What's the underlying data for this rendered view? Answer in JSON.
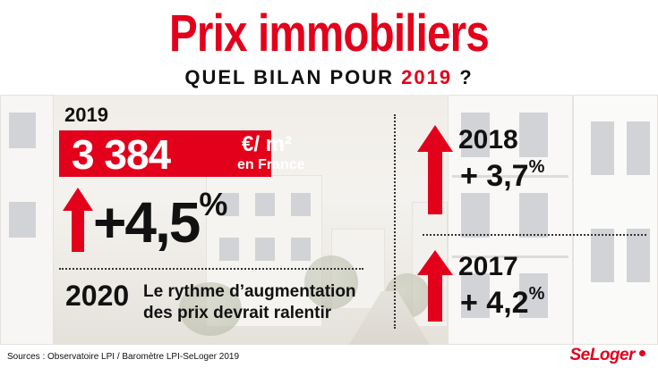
{
  "header": {
    "title": "Prix immobiliers",
    "subtitle_prefix": "QUEL BILAN POUR ",
    "subtitle_year": "2019",
    "subtitle_suffix": " ?"
  },
  "current": {
    "year": "2019",
    "price": "3 384",
    "unit": "€/ m²",
    "location": "en France",
    "change": "+4,5",
    "change_unit": "%"
  },
  "outlook": {
    "year": "2020",
    "line1": "Le rythme d’augmentation",
    "line2": "des prix devrait ralentir"
  },
  "history": [
    {
      "year": "2018",
      "change": "+ 3,7",
      "unit": "%"
    },
    {
      "year": "2017",
      "change": "+ 4,2",
      "unit": "%"
    }
  ],
  "footer": {
    "sources": "Sources : Observatoire LPI / Baromètre LPI-SeLoger 2019",
    "logo": "SeLoger"
  },
  "colors": {
    "accent": "#e3001b",
    "text": "#111111"
  }
}
